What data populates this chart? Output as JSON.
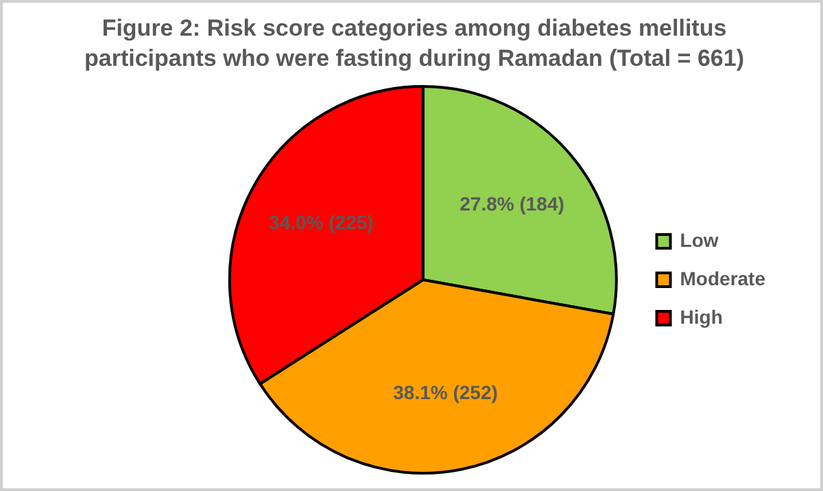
{
  "chart_data": {
    "type": "pie",
    "title": "Figure 2: Risk score categories among diabetes mellitus participants who were fasting during Ramadan (Total = 661)",
    "categories": [
      "Low",
      "Moderate",
      "High"
    ],
    "values": [
      184,
      252,
      225
    ],
    "colors": [
      "#92d050",
      "#ffa000",
      "#ff0000"
    ],
    "value_labels": [
      "27.8% (184)",
      "38.1% (252)",
      "34.0% (225)"
    ],
    "legend": "right"
  }
}
